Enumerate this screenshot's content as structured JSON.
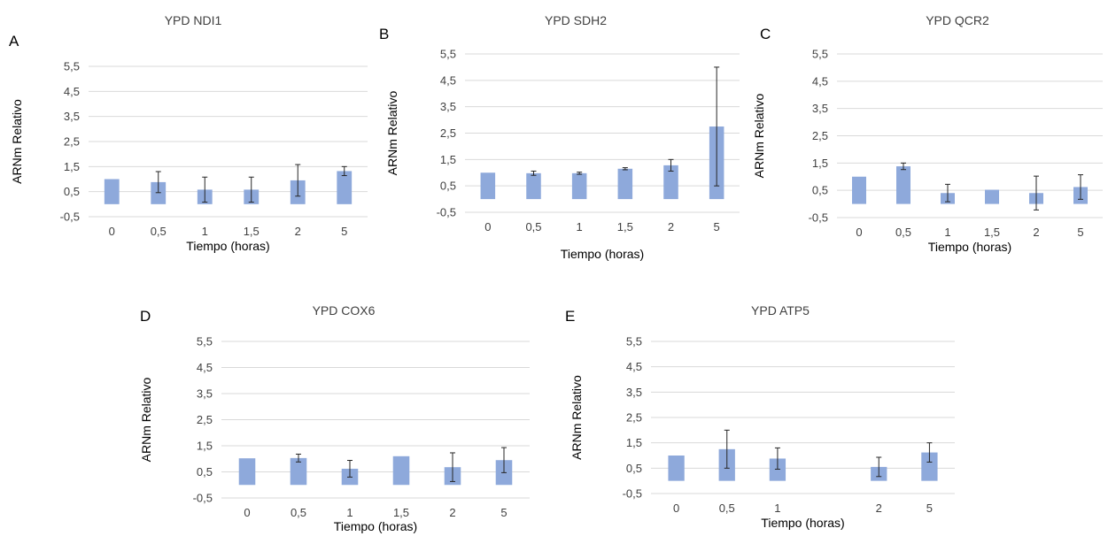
{
  "chart_data": [
    {
      "panel": "A",
      "type": "bar",
      "title": "YPD NDI1",
      "xlabel": "Tiempo (horas)",
      "ylabel": "ARNm Relativo",
      "categories": [
        "0",
        "0,5",
        "1",
        "1,5",
        "2",
        "5"
      ],
      "values": [
        1.0,
        0.88,
        0.58,
        0.58,
        0.95,
        1.32
      ],
      "errors": [
        0.0,
        0.42,
        0.5,
        0.5,
        0.63,
        0.18
      ],
      "yticks": [
        "5,5",
        "4,5",
        "3,5",
        "2,5",
        "1,5",
        "0,5",
        "-0,5"
      ],
      "ylim": [
        -0.5,
        5.5
      ],
      "grid": true,
      "bar_color": "#8ea9db"
    },
    {
      "panel": "B",
      "type": "bar",
      "title": "YPD SDH2",
      "xlabel": "Tiempo (horas)",
      "ylabel": "ARNm Relativo",
      "categories": [
        "0",
        "0,5",
        "1",
        "1,5",
        "2",
        "5"
      ],
      "values": [
        1.0,
        0.98,
        0.98,
        1.15,
        1.28,
        2.75
      ],
      "errors": [
        0.0,
        0.08,
        0.04,
        0.04,
        0.22,
        2.25
      ],
      "yticks": [
        "5,5",
        "4,5",
        "3,5",
        "2,5",
        "1,5",
        "0,5",
        "-0,5"
      ],
      "ylim": [
        -0.5,
        5.5
      ],
      "grid": true,
      "bar_color": "#8ea9db"
    },
    {
      "panel": "C",
      "type": "bar",
      "title": "YPD QCR2",
      "xlabel": "Tiempo (horas)",
      "ylabel": "ARNm Relativo",
      "categories": [
        "0",
        "0,5",
        "1",
        "1,5",
        "2",
        "5"
      ],
      "values": [
        1.0,
        1.38,
        0.4,
        0.52,
        0.4,
        0.62
      ],
      "errors": [
        0.0,
        0.12,
        0.32,
        0.0,
        0.62,
        0.45
      ],
      "yticks": [
        "5,5",
        "4,5",
        "3,5",
        "2,5",
        "1,5",
        "0,5",
        "-0,5"
      ],
      "ylim": [
        -0.5,
        5.5
      ],
      "grid": true,
      "bar_color": "#8ea9db"
    },
    {
      "panel": "D",
      "type": "bar",
      "title": "YPD COX6",
      "xlabel": "Tiempo (horas)",
      "ylabel": "ARNm Relativo",
      "categories": [
        "0",
        "0,5",
        "1",
        "1,5",
        "2",
        "5"
      ],
      "values": [
        1.02,
        1.03,
        0.62,
        1.1,
        0.68,
        0.95
      ],
      "errors": [
        0.0,
        0.15,
        0.32,
        0.0,
        0.55,
        0.48
      ],
      "yticks": [
        "5,5",
        "4,5",
        "3,5",
        "2,5",
        "1,5",
        "0,5",
        "-0,5"
      ],
      "ylim": [
        -0.5,
        5.5
      ],
      "grid": true,
      "bar_color": "#8ea9db"
    },
    {
      "panel": "E",
      "type": "bar",
      "title": "YPD ATP5",
      "xlabel": "Tiempo (horas)",
      "ylabel": "ARNm Relativo",
      "categories": [
        "0",
        "0,5",
        "1",
        "",
        "2",
        "5"
      ],
      "values": [
        1.0,
        1.25,
        0.88,
        null,
        0.55,
        1.12
      ],
      "errors": [
        0.0,
        0.75,
        0.42,
        null,
        0.38,
        0.38
      ],
      "yticks": [
        "5,5",
        "4,5",
        "3,5",
        "2,5",
        "1,5",
        "0,5",
        "-0,5"
      ],
      "ylim": [
        -0.5,
        5.5
      ],
      "grid": true,
      "bar_color": "#8ea9db"
    }
  ]
}
